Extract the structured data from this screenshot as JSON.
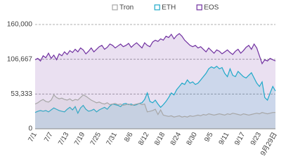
{
  "chart_data": {
    "type": "area",
    "categories": [
      "7/1",
      null,
      null,
      null,
      null,
      null,
      "7/7",
      null,
      null,
      null,
      null,
      null,
      "7/13",
      null,
      null,
      null,
      null,
      null,
      "7/19",
      null,
      null,
      null,
      null,
      null,
      "7/25",
      null,
      null,
      null,
      null,
      null,
      "7/31",
      null,
      null,
      null,
      null,
      null,
      "8/6",
      null,
      null,
      null,
      null,
      null,
      "8/12",
      null,
      null,
      null,
      null,
      null,
      "8/18",
      null,
      null,
      null,
      null,
      null,
      "8/24",
      null,
      null,
      null,
      null,
      null,
      "8/30",
      null,
      null,
      null,
      null,
      null,
      "9/5",
      null,
      null,
      null,
      null,
      null,
      "9/11",
      null,
      null,
      null,
      null,
      null,
      "9/17",
      null,
      null,
      null,
      null,
      null,
      "9/23",
      null,
      null,
      null,
      null,
      null,
      "9月29日"
    ],
    "series": [
      {
        "name": "Tron",
        "color": "#a6a6a6",
        "values": [
          38000,
          40000,
          43000,
          45000,
          42000,
          41000,
          44000,
          52000,
          48000,
          46000,
          47000,
          45000,
          44000,
          46000,
          43000,
          45000,
          44000,
          48000,
          52000,
          50000,
          47000,
          44000,
          42000,
          40000,
          41000,
          39000,
          38000,
          40000,
          37000,
          38000,
          39000,
          37000,
          38000,
          36000,
          37000,
          38000,
          36000,
          37000,
          38000,
          39000,
          37000,
          38000,
          26000,
          27000,
          28000,
          30000,
          22000,
          29000,
          21000,
          20000,
          19000,
          20000,
          18000,
          19000,
          20000,
          18000,
          19000,
          18000,
          20000,
          19000,
          20000,
          21000,
          20000,
          22000,
          21000,
          23000,
          22000,
          21000,
          22000,
          23000,
          22000,
          21000,
          23000,
          22000,
          24000,
          23000,
          22000,
          21000,
          23000,
          22000,
          21000,
          22000,
          23000,
          24000,
          23000,
          25000,
          24000,
          23000,
          24000,
          25000,
          25000
        ]
      },
      {
        "name": "ETH",
        "color": "#1fa9c9",
        "values": [
          25000,
          27000,
          28000,
          27000,
          28000,
          26000,
          29000,
          32000,
          30000,
          28000,
          27000,
          26000,
          30000,
          33000,
          29000,
          34000,
          24000,
          32000,
          36000,
          30000,
          27000,
          28000,
          30000,
          26000,
          29000,
          31000,
          33000,
          30000,
          35000,
          38000,
          37000,
          36000,
          34000,
          38000,
          39000,
          37000,
          38000,
          36000,
          37000,
          39000,
          40000,
          45000,
          55000,
          42000,
          40000,
          44000,
          38000,
          33000,
          37000,
          42000,
          48000,
          55000,
          52000,
          60000,
          65000,
          70000,
          68000,
          75000,
          70000,
          72000,
          68000,
          70000,
          75000,
          80000,
          85000,
          92000,
          95000,
          93000,
          96000,
          92000,
          94000,
          85000,
          80000,
          92000,
          82000,
          80000,
          88000,
          84000,
          80000,
          78000,
          82000,
          86000,
          78000,
          70000,
          65000,
          72000,
          48000,
          44000,
          55000,
          65000,
          58000
        ]
      },
      {
        "name": "EOS",
        "color": "#7030a0",
        "values": [
          106000,
          108000,
          104000,
          112000,
          109000,
          116000,
          108000,
          113000,
          106000,
          115000,
          112000,
          118000,
          114000,
          120000,
          117000,
          122000,
          118000,
          124000,
          121000,
          115000,
          119000,
          124000,
          118000,
          122000,
          126000,
          128000,
          122000,
          125000,
          130000,
          128000,
          124000,
          127000,
          130000,
          126000,
          128000,
          131000,
          125000,
          129000,
          132000,
          128000,
          124000,
          132000,
          128000,
          126000,
          133000,
          136000,
          134000,
          138000,
          136000,
          142000,
          140000,
          145000,
          138000,
          143000,
          146000,
          142000,
          136000,
          132000,
          128000,
          126000,
          128000,
          124000,
          126000,
          122000,
          118000,
          124000,
          120000,
          116000,
          121000,
          119000,
          115000,
          118000,
          121000,
          117000,
          114000,
          119000,
          122000,
          116000,
          120000,
          125000,
          128000,
          122000,
          130000,
          124000,
          112000,
          100000,
          106000,
          104000,
          108000,
          106000,
          104000
        ]
      }
    ],
    "ylim": [
      0,
      160000
    ],
    "yticks": [
      0,
      {
        "value": 53333.33,
        "label": "53,333"
      },
      {
        "value": 106666.67,
        "label": "106,667"
      },
      {
        "value": 160000,
        "label": "160,000"
      }
    ],
    "grid": true,
    "legend": "top"
  }
}
